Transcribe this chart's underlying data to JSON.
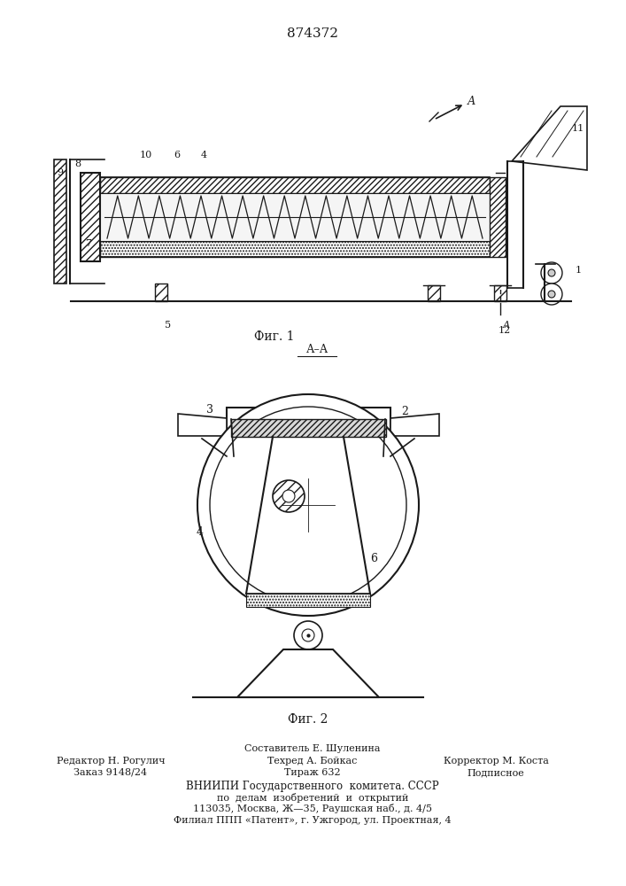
{
  "patent_number": "874372",
  "fig1_label": "Фиг. 1",
  "fig2_label": "Фиг. 2",
  "background_color": "#ffffff",
  "line_color": "#1a1a1a",
  "footer_col1": [
    "Редактор Н. Рогулич",
    "Заказ 9148/24"
  ],
  "footer_col2": [
    "Техред А. Бойкас",
    "Тираж 632"
  ],
  "footer_col3": [
    "Корректор М. Коста",
    "Подписное"
  ],
  "footer_top": "Составитель Е. Шуленина",
  "footer_org1": "ВНИИПИ Государственного  комитета. СССР",
  "footer_org2": "по  делам  изобретений  и  открытий",
  "footer_org3": "113035, Москва, Ж—35, Раушская наб., д. 4/5",
  "footer_org4": "Филиал ППП «Патент», г. Ужгород, ул. Проектная, 4"
}
